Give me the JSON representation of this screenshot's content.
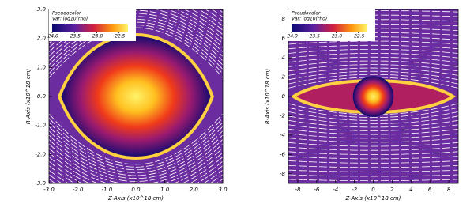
{
  "chart_data": [
    {
      "type": "pseudocolor",
      "legend_title": "Pseudocolor",
      "legend_var": "Var: log10(rho)",
      "xlabel": "Z-Axis (x10^18 cm)",
      "ylabel": "R-Axis (x10^18 cm)",
      "xlim": [
        -3.0,
        3.0
      ],
      "ylim": [
        -3.0,
        3.0
      ],
      "xticks": [
        {
          "value": -3,
          "label": "-3.0"
        },
        {
          "value": -2,
          "label": "-2.0"
        },
        {
          "value": -1,
          "label": "-1.0"
        },
        {
          "value": 0,
          "label": "0.0"
        },
        {
          "value": 1,
          "label": "1.0"
        },
        {
          "value": 2,
          "label": "2.0"
        },
        {
          "value": 3,
          "label": "3.0"
        }
      ],
      "yticks": [
        {
          "value": -3,
          "label": "-3.0"
        },
        {
          "value": -2,
          "label": "-2.0"
        },
        {
          "value": -1,
          "label": "-1.0"
        },
        {
          "value": 0,
          "label": "0.0"
        },
        {
          "value": 1,
          "label": "1.0"
        },
        {
          "value": 2,
          "label": "2.0"
        },
        {
          "value": 3,
          "label": "3.0"
        }
      ],
      "clim": [
        -24.0,
        -22.3
      ],
      "cticks": [
        {
          "value": -24,
          "label": "-24.0"
        },
        {
          "value": -23.5,
          "label": "-23.5"
        },
        {
          "value": -23,
          "label": "-23.0"
        },
        {
          "value": -22.5,
          "label": "-22.5"
        }
      ]
    },
    {
      "type": "pseudocolor",
      "legend_title": "Pseudocolor",
      "legend_var": "Var: log10(rho)",
      "xlabel": "Z-Axis (x10^18 cm)",
      "ylabel": "R-Axis (x10^18 cm)",
      "xlim": [
        -9,
        9
      ],
      "ylim": [
        -9,
        9
      ],
      "xticks": [
        -8,
        -6,
        -4,
        -2,
        0,
        2,
        4,
        6,
        8
      ],
      "yticks": [
        -8,
        -6,
        -4,
        -2,
        0,
        2,
        4,
        6,
        8
      ],
      "clim": [
        -24.0,
        -22.3
      ],
      "cticks": [
        {
          "value": -24,
          "label": "-24.0"
        },
        {
          "value": -23.5,
          "label": "-23.5"
        },
        {
          "value": -23,
          "label": "-23.0"
        },
        {
          "value": -22.5,
          "label": "-22.5"
        }
      ]
    }
  ]
}
